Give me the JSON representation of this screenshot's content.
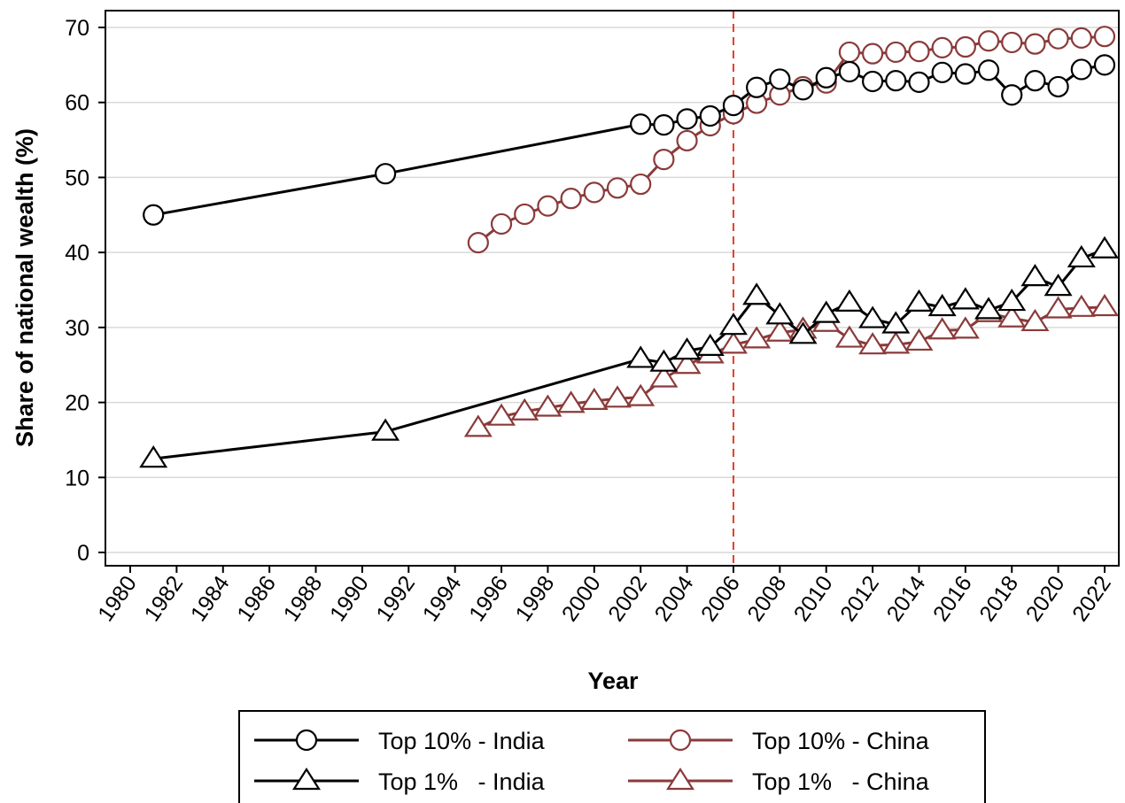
{
  "chart_data": {
    "type": "line",
    "title": "",
    "xlabel": "Year",
    "ylabel": "Share of national wealth (%)",
    "xlim": [
      1980,
      2022
    ],
    "ylim": [
      0,
      70
    ],
    "x_ticks": [
      "1980",
      "1982",
      "1984",
      "1986",
      "1988",
      "1990",
      "1992",
      "1994",
      "1996",
      "1998",
      "2000",
      "2002",
      "2004",
      "2006",
      "2008",
      "2010",
      "2012",
      "2014",
      "2016",
      "2018",
      "2020",
      "2022"
    ],
    "y_ticks": [
      "0",
      "10",
      "20",
      "30",
      "40",
      "50",
      "60",
      "70"
    ],
    "grid": "horizontal",
    "reference_line": {
      "x": 2006,
      "style": "dashed",
      "color": "#e0402a"
    },
    "legend_position": "bottom",
    "series": [
      {
        "name": "Top 10% - India",
        "color": "#000000",
        "marker": "circle",
        "x": [
          1981,
          1991,
          2002,
          2003,
          2004,
          2005,
          2006,
          2007,
          2008,
          2009,
          2010,
          2011,
          2012,
          2013,
          2014,
          2015,
          2016,
          2017,
          2018,
          2019,
          2020,
          2021,
          2022
        ],
        "values": [
          45.0,
          50.5,
          57.1,
          57.0,
          57.8,
          58.2,
          59.6,
          62.0,
          63.1,
          61.7,
          63.3,
          64.1,
          62.8,
          62.9,
          62.7,
          64.0,
          63.8,
          64.3,
          61.0,
          62.9,
          62.1,
          64.4,
          65.0
        ]
      },
      {
        "name": "Top 10% - China",
        "color": "#8b3a3a",
        "marker": "circle",
        "x": [
          1995,
          1996,
          1997,
          1998,
          1999,
          2000,
          2001,
          2002,
          2003,
          2004,
          2005,
          2006,
          2007,
          2008,
          2009,
          2010,
          2011,
          2012,
          2013,
          2014,
          2015,
          2016,
          2017,
          2018,
          2019,
          2020,
          2021,
          2022
        ],
        "values": [
          41.3,
          43.8,
          45.1,
          46.2,
          47.2,
          48.0,
          48.6,
          49.1,
          52.4,
          54.9,
          56.9,
          58.5,
          59.9,
          61.0,
          62.1,
          62.6,
          66.7,
          66.5,
          66.7,
          66.8,
          67.3,
          67.4,
          68.2,
          68.0,
          67.8,
          68.5,
          68.6,
          68.8
        ]
      },
      {
        "name": "Top 1%   - India",
        "color": "#000000",
        "marker": "triangle",
        "x": [
          1981,
          1991,
          2002,
          2003,
          2004,
          2005,
          2006,
          2007,
          2008,
          2009,
          2010,
          2011,
          2012,
          2013,
          2014,
          2015,
          2016,
          2017,
          2018,
          2019,
          2020,
          2021,
          2022
        ],
        "values": [
          12.5,
          16.1,
          25.8,
          25.3,
          26.9,
          27.4,
          30.2,
          34.2,
          31.6,
          29.0,
          31.8,
          33.3,
          31.1,
          30.4,
          33.3,
          32.7,
          33.6,
          32.3,
          33.4,
          36.7,
          35.4,
          39.2,
          40.4
        ]
      },
      {
        "name": "Top 1%   - China",
        "color": "#8b3a3a",
        "marker": "triangle",
        "x": [
          1995,
          1996,
          1997,
          1998,
          1999,
          2000,
          2001,
          2002,
          2003,
          2004,
          2005,
          2006,
          2007,
          2008,
          2009,
          2010,
          2011,
          2012,
          2013,
          2014,
          2015,
          2016,
          2017,
          2018,
          2019,
          2020,
          2021,
          2022
        ],
        "values": [
          16.6,
          18.1,
          18.8,
          19.3,
          19.8,
          20.2,
          20.5,
          20.7,
          23.2,
          25.0,
          26.4,
          27.7,
          28.4,
          29.3,
          29.7,
          30.6,
          28.5,
          27.6,
          27.7,
          28.1,
          29.6,
          29.7,
          31.9,
          31.2,
          30.7,
          32.4,
          32.6,
          32.7
        ]
      }
    ]
  }
}
